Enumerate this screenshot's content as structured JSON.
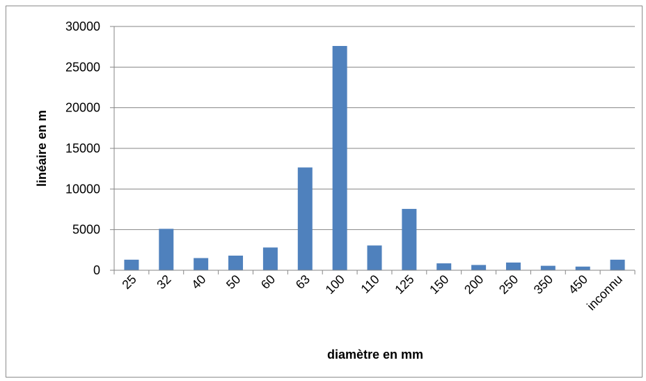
{
  "chart_data": {
    "type": "bar",
    "title": "",
    "xlabel": "diamètre en mm",
    "ylabel": "linéaire en m",
    "categories": [
      "25",
      "32",
      "40",
      "50",
      "60",
      "63",
      "100",
      "110",
      "125",
      "150",
      "200",
      "250",
      "350",
      "450",
      "inconnu"
    ],
    "values": [
      1300,
      5100,
      1500,
      1800,
      2800,
      12650,
      27600,
      3050,
      7550,
      850,
      650,
      950,
      550,
      450,
      1300
    ],
    "ylim": [
      0,
      30000
    ],
    "yticks": [
      0,
      5000,
      10000,
      15000,
      20000,
      25000,
      30000
    ],
    "grid": true,
    "legend": "none",
    "colors": {
      "bar": "#4f81bd",
      "grid": "#868686",
      "axis": "#868686"
    }
  }
}
